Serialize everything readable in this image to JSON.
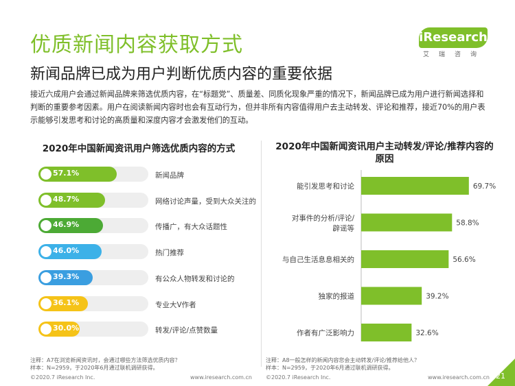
{
  "header": {
    "title": "优质新闻内容获取方式",
    "subtitle": "新闻品牌已成为用户判断优质内容的重要依据",
    "intro": "接近六成用户会通过新闻品牌来筛选优质内容，在“标题党”、质量差、同质化现象严重的情况下，新闻品牌已成为用户进行新闻选择和判断的重要参考因素。用户在阅读新闻内容时也会有互动行为，但并非所有内容值得用户去主动转发、评论和推荐，接近70%的用户表示能够引发思考和讨论的高质量和深度内容才会激发他们的互动。"
  },
  "logo": {
    "text": "iResearch",
    "subtext": "艾瑞咨询"
  },
  "chart_data": [
    {
      "type": "bar",
      "orientation": "horizontal",
      "title": "2020年中国新闻资讯用户筛选优质内容的方式",
      "categories": [
        "新闻品牌",
        "网络讨论声量，受到大众关注的",
        "传播广，有大众话题性",
        "热门推荐",
        "有公众人物转发和讨论的",
        "专业大V作者",
        "转发/评论/点赞数量"
      ],
      "values": [
        57.1,
        48.7,
        46.9,
        46.0,
        39.3,
        36.1,
        30.0
      ],
      "labels": [
        "57.1%",
        "48.7%",
        "46.9%",
        "46.0%",
        "39.3%",
        "36.1%",
        "30.0%"
      ],
      "colors": [
        "#7fbf2a",
        "#7fbf2a",
        "#4caa35",
        "#3cb1e8",
        "#3a9ee0",
        "#f5c318",
        "#f5c318"
      ],
      "xlim": [
        0,
        80
      ],
      "note": "注释：A7在浏览新闻资讯时，会通过哪些方法筛选优质内容？\n样本：N=2959，于2020年6月通过联机调研获得。"
    },
    {
      "type": "bar",
      "orientation": "horizontal",
      "title": "2020年中国新闻资讯用户主动转发/评论/推荐内容的原因",
      "categories": [
        "能引发思考和讨论",
        "对事件的分析/评论/辟谣等",
        "与自己生活息息相关的",
        "独家的报道",
        "作者有广泛影响力"
      ],
      "values": [
        69.7,
        58.8,
        56.6,
        39.2,
        32.6
      ],
      "labels": [
        "69.7%",
        "58.8%",
        "56.6%",
        "39.2%",
        "32.6%"
      ],
      "color": "#7fbf2a",
      "xlim": [
        0,
        80
      ],
      "note": "注释：A8一般怎样的新闻内容您会主动转发/评论/推荐给他人？\n样本：N=2959，于2020年6月通过联机调研获得。"
    }
  ],
  "footer": {
    "copyright": "©2020.7 iResearch Inc.",
    "website": "www.iresearch.com.cn",
    "page": "21"
  }
}
